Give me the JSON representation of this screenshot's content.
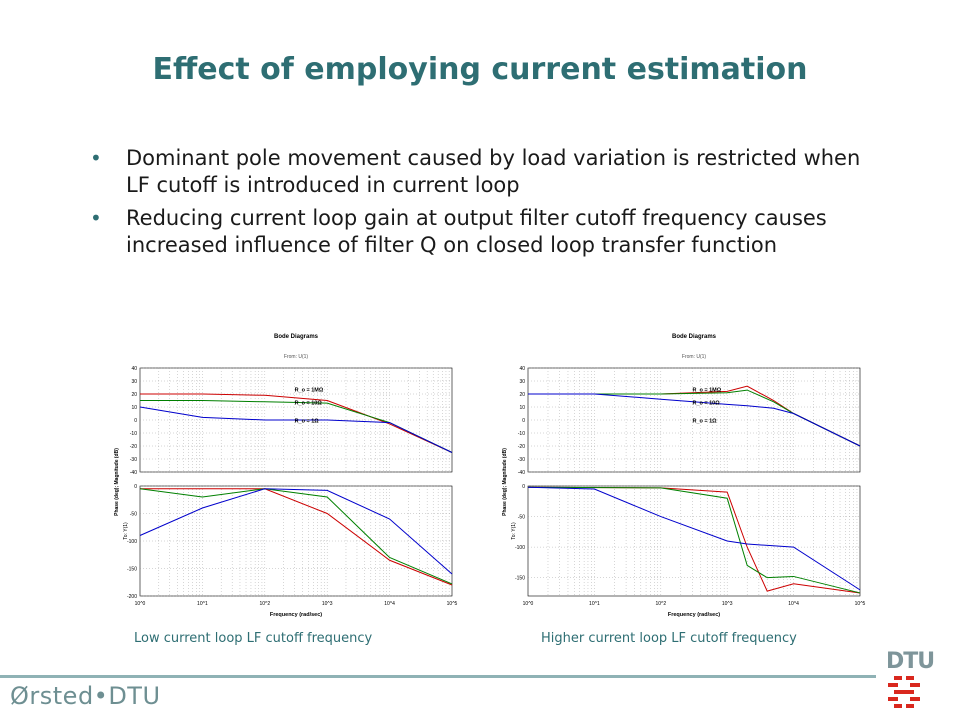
{
  "slide": {
    "title": "Effect of employing current estimation",
    "bullets": [
      "Dominant pole movement caused by load variation is restricted when LF cutoff is introduced in current loop",
      "Reducing current loop gain at output filter cutoff frequency causes increased influence of filter Q on closed loop transfer function"
    ],
    "captions": [
      "Low current loop LF cutoff frequency",
      "Higher current loop LF cutoff frequency"
    ],
    "footer_brand": "Ørsted•DTU",
    "logo_text": "DTU"
  },
  "colors": {
    "title": "#2e6e73",
    "bullet": "#2e6e73",
    "caption": "#2e6e73",
    "footer_line": "#8fb2b5",
    "logo_red": "#d9281e",
    "series": [
      "#cc0000",
      "#008000",
      "#0000cc"
    ]
  },
  "chart_data": [
    {
      "type": "line",
      "title": "Bode Diagrams",
      "subtitle": "From: U(1)",
      "xlabel": "Frequency (rad/sec)",
      "ylabel_magnitude": "Phase (deg); Magnitude (dB)",
      "ylabel_phase": "To: Y(1)",
      "xscale": "log",
      "xlim": [
        1,
        100000
      ],
      "xticks": [
        "10^0",
        "10^1",
        "10^2",
        "10^3",
        "10^4",
        "10^5"
      ],
      "magnitude": {
        "ylim": [
          -40,
          40
        ],
        "yticks": [
          "40",
          "30",
          "20",
          "10",
          "0",
          "-10",
          "-20",
          "-30",
          "-40"
        ]
      },
      "phase": {
        "ylim": [
          -200,
          0
        ],
        "yticks": [
          "0",
          "-50",
          "-100",
          "-150",
          "-200"
        ]
      },
      "annotations": [
        "R_o = 1MΩ",
        "R_o = 10Ω",
        "R_o = 1Ω"
      ],
      "series": [
        {
          "color": "#cc0000",
          "magnitude": [
            [
              1,
              20
            ],
            [
              10,
              20
            ],
            [
              100,
              19
            ],
            [
              1000,
              15
            ],
            [
              10000,
              -3
            ],
            [
              100000,
              -25
            ]
          ],
          "phase": [
            [
              1,
              -5
            ],
            [
              10,
              -5
            ],
            [
              100,
              -5
            ],
            [
              1000,
              -50
            ],
            [
              10000,
              -135
            ],
            [
              100000,
              -180
            ]
          ]
        },
        {
          "color": "#008000",
          "magnitude": [
            [
              1,
              15
            ],
            [
              10,
              15
            ],
            [
              100,
              14
            ],
            [
              1000,
              13
            ],
            [
              10000,
              -2
            ],
            [
              100000,
              -25
            ]
          ],
          "phase": [
            [
              1,
              -5
            ],
            [
              10,
              -20
            ],
            [
              100,
              -5
            ],
            [
              1000,
              -20
            ],
            [
              10000,
              -130
            ],
            [
              100000,
              -178
            ]
          ]
        },
        {
          "color": "#0000cc",
          "magnitude": [
            [
              1,
              10
            ],
            [
              10,
              2
            ],
            [
              100,
              0
            ],
            [
              1000,
              0
            ],
            [
              10000,
              -2
            ],
            [
              100000,
              -25
            ]
          ],
          "phase": [
            [
              1,
              -90
            ],
            [
              10,
              -40
            ],
            [
              100,
              -5
            ],
            [
              1000,
              -8
            ],
            [
              10000,
              -60
            ],
            [
              100000,
              -160
            ]
          ]
        }
      ]
    },
    {
      "type": "line",
      "title": "Bode Diagrams",
      "subtitle": "From: U(1)",
      "xlabel": "Frequency (rad/sec)",
      "ylabel_magnitude": "Phase (deg); Magnitude (dB)",
      "ylabel_phase": "To: Y(1)",
      "xscale": "log",
      "xlim": [
        1,
        100000
      ],
      "xticks": [
        "10^0",
        "10^1",
        "10^2",
        "10^3",
        "10^4",
        "10^5"
      ],
      "magnitude": {
        "ylim": [
          -40,
          40
        ],
        "yticks": [
          "40",
          "30",
          "20",
          "10",
          "0",
          "-10",
          "-20",
          "-30",
          "-40"
        ]
      },
      "phase": {
        "ylim": [
          -180,
          0
        ],
        "yticks": [
          "0",
          "-50",
          "-100",
          "-150"
        ]
      },
      "annotations": [
        "R_o = 1MΩ",
        "R_o = 10Ω",
        "R_o = 1Ω"
      ],
      "series": [
        {
          "color": "#cc0000",
          "magnitude": [
            [
              1,
              20
            ],
            [
              10,
              20
            ],
            [
              100,
              20
            ],
            [
              1000,
              22
            ],
            [
              2000,
              26
            ],
            [
              5000,
              15
            ],
            [
              10000,
              5
            ],
            [
              100000,
              -20
            ]
          ],
          "phase": [
            [
              1,
              -2
            ],
            [
              100,
              -3
            ],
            [
              1000,
              -10
            ],
            [
              2000,
              -100
            ],
            [
              4000,
              -172
            ],
            [
              10000,
              -160
            ],
            [
              100000,
              -175
            ]
          ]
        },
        {
          "color": "#008000",
          "magnitude": [
            [
              1,
              20
            ],
            [
              10,
              20
            ],
            [
              100,
              20
            ],
            [
              1000,
              21
            ],
            [
              2000,
              23
            ],
            [
              5000,
              14
            ],
            [
              10000,
              5
            ],
            [
              100000,
              -20
            ]
          ],
          "phase": [
            [
              1,
              -2
            ],
            [
              100,
              -3
            ],
            [
              1000,
              -20
            ],
            [
              2000,
              -130
            ],
            [
              4000,
              -150
            ],
            [
              10000,
              -148
            ],
            [
              100000,
              -175
            ]
          ]
        },
        {
          "color": "#0000cc",
          "magnitude": [
            [
              1,
              20
            ],
            [
              10,
              20
            ],
            [
              100,
              16
            ],
            [
              1000,
              12
            ],
            [
              2000,
              11
            ],
            [
              5000,
              9
            ],
            [
              10000,
              5
            ],
            [
              100000,
              -20
            ]
          ],
          "phase": [
            [
              1,
              -2
            ],
            [
              10,
              -5
            ],
            [
              100,
              -50
            ],
            [
              1000,
              -90
            ],
            [
              2000,
              -95
            ],
            [
              10000,
              -100
            ],
            [
              100000,
              -170
            ]
          ]
        }
      ]
    }
  ]
}
